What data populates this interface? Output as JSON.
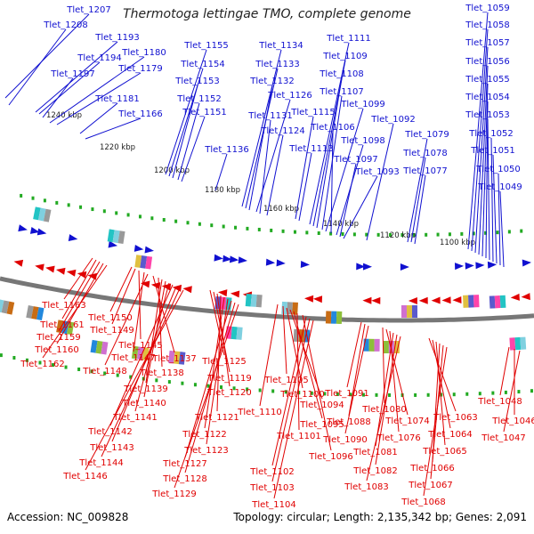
{
  "title": "Thermotoga lettingae TMO, complete genome",
  "footer": {
    "accession": "Accession: NC_009828",
    "topology": "Topology: circular; Length: 2,135,342 bp; Genes: 2,091"
  },
  "colors": {
    "forward": "#1010d0",
    "reverse": "#e00000",
    "backbone": "#777777",
    "tick": "#22aa22"
  },
  "scale_labels": [
    "1240 kbp",
    "1220 kbp",
    "1200 kbp",
    "1180 kbp",
    "1160 kbp",
    "1140 kbp",
    "1120 kbp",
    "1100 kbp"
  ],
  "top_labels": [
    "Tlet_1207",
    "Tlet_1208",
    "Tlet_1193",
    "Tlet_1194",
    "Tlet_1197",
    "Tlet_1180",
    "Tlet_1179",
    "Tlet_1181",
    "Tlet_1166",
    "Tlet_1155",
    "Tlet_1154",
    "Tlet_1153",
    "Tlet_1152",
    "Tlet_1151",
    "Tlet_1136",
    "Tlet_1134",
    "Tlet_1133",
    "Tlet_1132",
    "Tlet_1126",
    "Tlet_1131",
    "Tlet_1124",
    "Tlet_1115",
    "Tlet_1113",
    "Tlet_1111",
    "Tlet_1109",
    "Tlet_1108",
    "Tlet_1107",
    "Tlet_1099",
    "Tlet_1106",
    "Tlet_1098",
    "Tlet_1097",
    "Tlet_1093",
    "Tlet_1092",
    "Tlet_1079",
    "Tlet_1078",
    "Tlet_1077",
    "Tlet_1059",
    "Tlet_1058",
    "Tlet_1057",
    "Tlet_1056",
    "Tlet_1055",
    "Tlet_1054",
    "Tlet_1053",
    "Tlet_1052",
    "Tlet_1051",
    "Tlet_1050",
    "Tlet_1049"
  ],
  "bottom_labels": [
    "Tlet_1163",
    "Tlet_1161",
    "Tlet_1159",
    "Tlet_1160",
    "Tlet_1162",
    "Tlet_1150",
    "Tlet_1149",
    "Tlet_1145",
    "Tlet_1147",
    "Tlet_1148",
    "Tlet_1137",
    "Tlet_1138",
    "Tlet_1139",
    "Tlet_1140",
    "Tlet_1141",
    "Tlet_1142",
    "Tlet_1143",
    "Tlet_1144",
    "Tlet_1146",
    "Tlet_1125",
    "Tlet_1119",
    "Tlet_1120",
    "Tlet_1121",
    "Tlet_1122",
    "Tlet_1123",
    "Tlet_1127",
    "Tlet_1128",
    "Tlet_1129",
    "Tlet_1110",
    "Tlet_1105",
    "Tlet_1100",
    "Tlet_1094",
    "Tlet_1095",
    "Tlet_1101",
    "Tlet_1096",
    "Tlet_1102",
    "Tlet_1103",
    "Tlet_1104",
    "Tlet_1091",
    "Tlet_1088",
    "Tlet_1090",
    "Tlet_1080",
    "Tlet_1074",
    "Tlet_1076",
    "Tlet_1081",
    "Tlet_1082",
    "Tlet_1083",
    "Tlet_1063",
    "Tlet_1064",
    "Tlet_1065",
    "Tlet_1066",
    "Tlet_1067",
    "Tlet_1068",
    "Tlet_1048",
    "Tlet_1046",
    "Tlet_1047"
  ]
}
